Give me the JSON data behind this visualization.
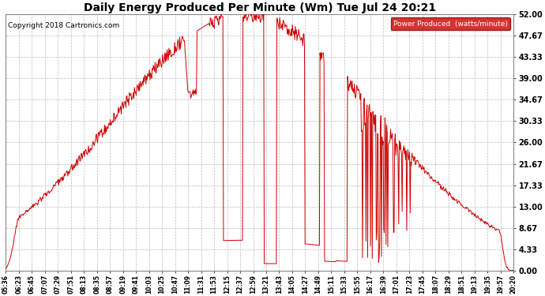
{
  "title": "Daily Energy Produced Per Minute (Wm) Tue Jul 24 20:21",
  "copyright": "Copyright 2018 Cartronics.com",
  "legend_label": "Power Produced  (watts/minute)",
  "legend_bg": "#cc0000",
  "legend_fg": "#ffffff",
  "line_color": "#cc0000",
  "background_color": "#ffffff",
  "grid_color": "#bbbbbb",
  "y_ticks": [
    0.0,
    4.33,
    8.67,
    13.0,
    17.33,
    21.67,
    26.0,
    30.33,
    34.67,
    39.0,
    43.33,
    47.67,
    52.0
  ],
  "ylim": [
    0.0,
    52.0
  ],
  "x_tick_labels": [
    "05:36",
    "06:23",
    "06:45",
    "07:07",
    "07:29",
    "07:51",
    "08:13",
    "08:35",
    "08:57",
    "09:19",
    "09:41",
    "10:03",
    "10:25",
    "10:47",
    "11:09",
    "11:31",
    "11:53",
    "12:15",
    "12:37",
    "12:59",
    "13:21",
    "13:43",
    "14:05",
    "14:27",
    "14:49",
    "15:11",
    "15:33",
    "15:55",
    "16:17",
    "16:39",
    "17:01",
    "17:23",
    "17:45",
    "18:07",
    "18:29",
    "18:51",
    "19:13",
    "19:35",
    "19:57",
    "20:20"
  ],
  "figsize": [
    6.9,
    3.75
  ],
  "dpi": 100
}
